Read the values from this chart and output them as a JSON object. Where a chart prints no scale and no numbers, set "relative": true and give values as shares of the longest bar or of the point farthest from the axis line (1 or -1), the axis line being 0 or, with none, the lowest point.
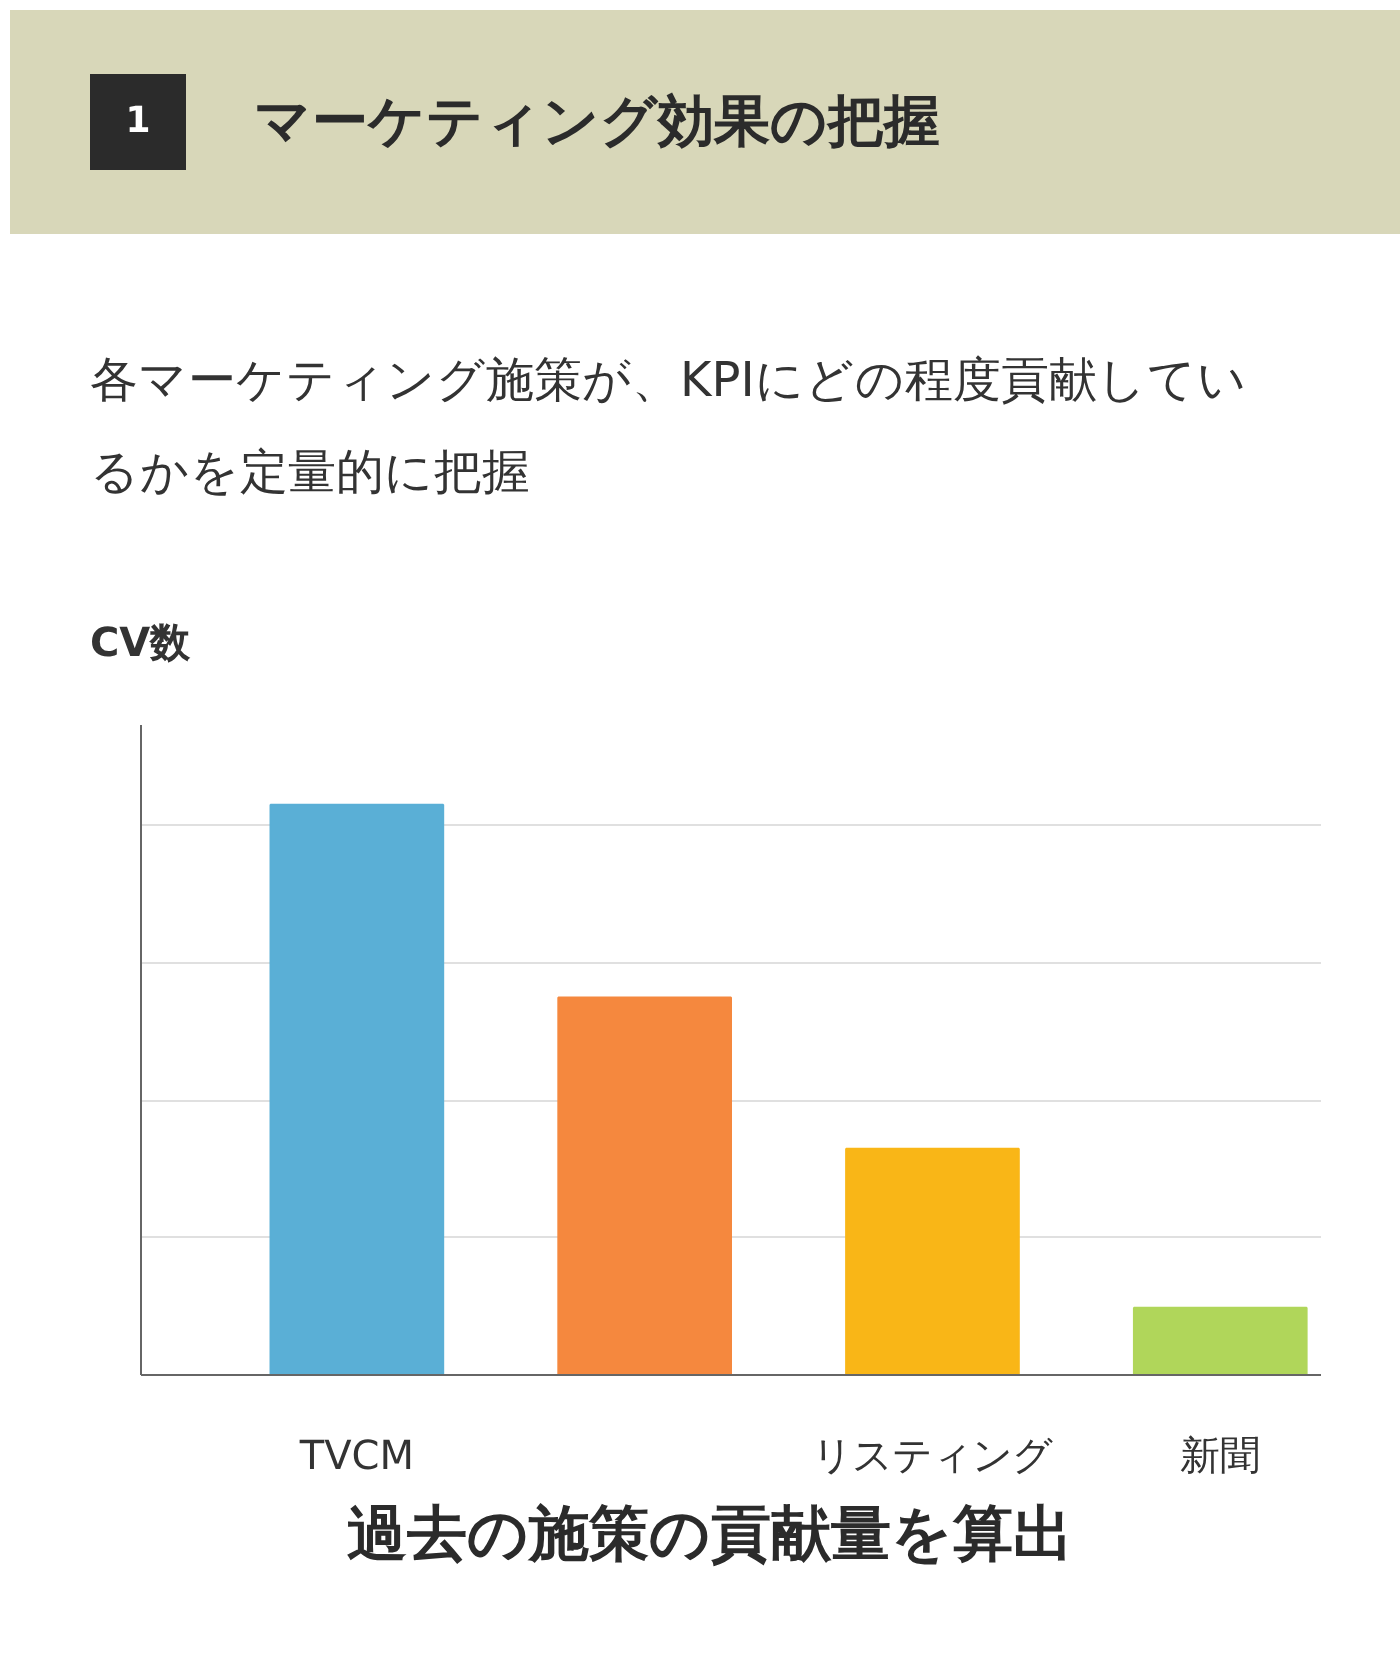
{
  "chart_data": {
    "type": "bar",
    "title": "マーケティング効果の把握",
    "subtitle": "各マーケティング施策が、KPIにどの程度貢献しているかを定量的に把握",
    "ylabel": "CV数",
    "categories": [
      "TVCM",
      null,
      "リスティング",
      "新聞"
    ],
    "values": [
      1,
      0.662,
      0.397,
      0.118
    ],
    "colors": [
      "#5aafd6",
      "#f5883e",
      "#f9b617",
      "#b0d65a"
    ],
    "relative": true,
    "grid": "y",
    "annotations": [
      "1",
      "過去の施策の貢献量を算出"
    ]
  }
}
